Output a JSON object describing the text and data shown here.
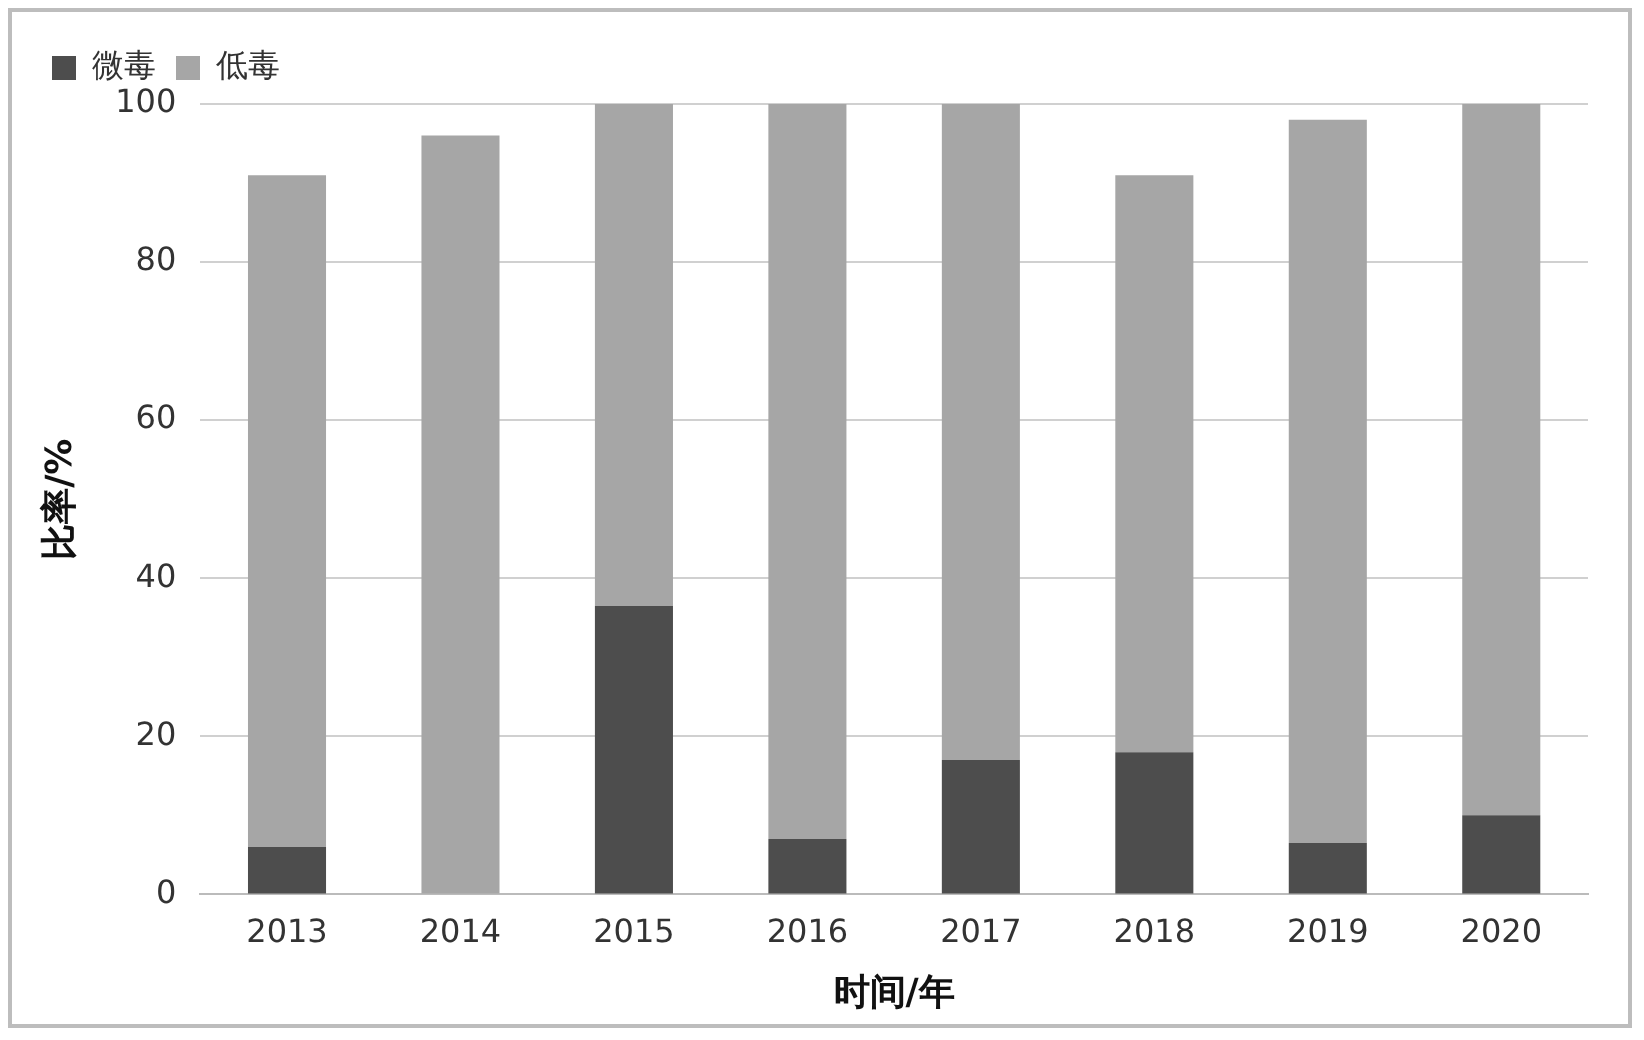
{
  "chart_data": {
    "type": "bar",
    "stacked": true,
    "xlabel": "时间/年",
    "ylabel": "比率/%",
    "categories": [
      "2013",
      "2014",
      "2015",
      "2016",
      "2017",
      "2018",
      "2019",
      "2020"
    ],
    "series": [
      {
        "name": "微毒",
        "color": "#4d4d4d",
        "values": [
          6,
          0,
          36.5,
          7,
          17,
          18,
          6.5,
          10
        ]
      },
      {
        "name": "低毒",
        "color": "#a6a6a6",
        "values": [
          85,
          96,
          63.5,
          93,
          83,
          73,
          91.5,
          90
        ]
      }
    ],
    "ylim": [
      0,
      100
    ],
    "yticks": [
      0,
      20,
      40,
      60,
      80,
      100
    ],
    "grid": "y",
    "legend": "top left"
  }
}
